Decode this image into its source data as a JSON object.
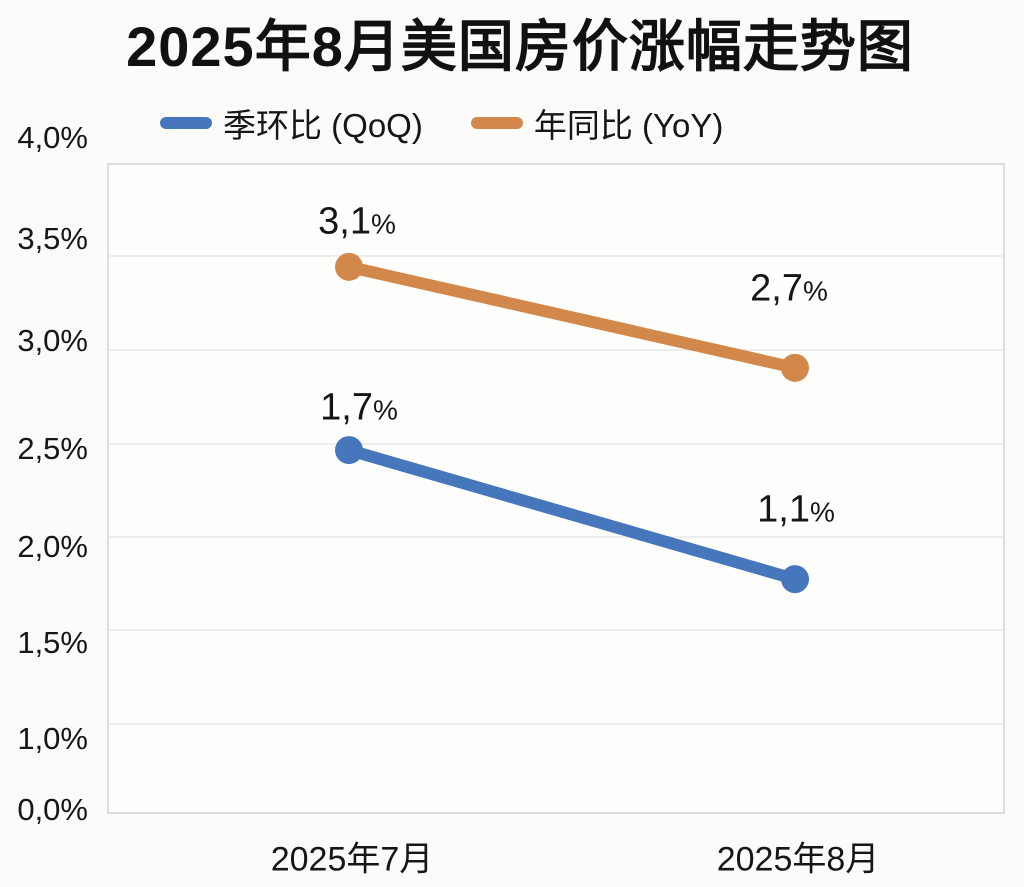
{
  "title": "2025年8月美国房价涨幅走势图",
  "legend": {
    "qoq_label": "季环比 (QoQ)",
    "yoy_label": "年同比 (YoY)"
  },
  "colors": {
    "qoq": "#4677BC",
    "yoy": "#D2884B",
    "grid": "#E3E3E3",
    "plot_border": "#C9C9C9"
  },
  "chart_data": {
    "type": "line",
    "title": "2025年8月美国房价涨幅走势图",
    "x": [
      "2025年7月",
      "2025年8月"
    ],
    "series": [
      {
        "name": "季环比 (QoQ)",
        "color": "#4677BC",
        "values": [
          1.7,
          1.1
        ],
        "point_labels": [
          "1,7%",
          "1,1%"
        ],
        "plotted_axis_positions": [
          2.47,
          1.78
        ]
      },
      {
        "name": "年同比 (YoY)",
        "color": "#D2884B",
        "values": [
          3.1,
          2.7
        ],
        "point_labels": [
          "3,1%",
          "2,7%"
        ],
        "plotted_axis_positions": [
          3.45,
          2.91
        ]
      }
    ],
    "y_tick_labels": [
      "4,0%",
      "3,5%",
      "3,0%",
      "2,5%",
      "2,0%",
      "1,5%",
      "1,0%",
      "0,0%"
    ],
    "y_tick_values": [
      4.0,
      3.5,
      3.0,
      2.5,
      2.0,
      1.5,
      1.0,
      0.0
    ],
    "ylim": [
      0.0,
      4.0
    ],
    "grid": true,
    "legend_position": "top-left"
  }
}
